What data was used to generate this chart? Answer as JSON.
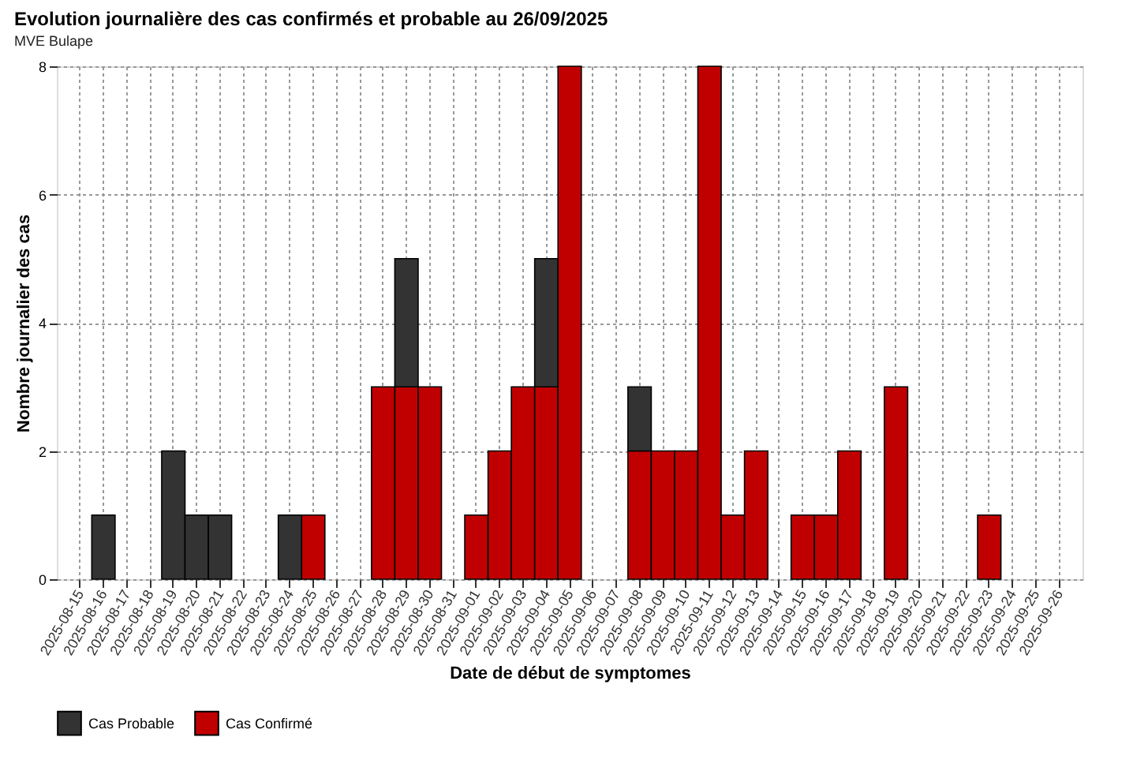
{
  "chart_data": {
    "type": "bar",
    "title": "Evolution journalière des cas confirmés et probable au 26/09/2025",
    "subtitle": "MVE Bulape",
    "xlabel": "Date de début de symptomes",
    "ylabel": "Nombre journalier des cas",
    "categories": [
      "2025-08-15",
      "2025-08-16",
      "2025-08-17",
      "2025-08-18",
      "2025-08-19",
      "2025-08-20",
      "2025-08-21",
      "2025-08-22",
      "2025-08-23",
      "2025-08-24",
      "2025-08-25",
      "2025-08-26",
      "2025-08-27",
      "2025-08-28",
      "2025-08-29",
      "2025-08-30",
      "2025-08-31",
      "2025-09-01",
      "2025-09-02",
      "2025-09-03",
      "2025-09-04",
      "2025-09-05",
      "2025-09-06",
      "2025-09-07",
      "2025-09-08",
      "2025-09-09",
      "2025-09-10",
      "2025-09-11",
      "2025-09-12",
      "2025-09-13",
      "2025-09-14",
      "2025-09-15",
      "2025-09-16",
      "2025-09-17",
      "2025-09-18",
      "2025-09-19",
      "2025-09-20",
      "2025-09-21",
      "2025-09-22",
      "2025-09-23",
      "2025-09-24",
      "2025-09-25",
      "2025-09-26"
    ],
    "stacked": true,
    "series": [
      {
        "name": "Cas Confirmé",
        "color": "#c00000",
        "values": [
          0,
          0,
          0,
          0,
          0,
          0,
          0,
          0,
          0,
          0,
          1,
          0,
          0,
          3,
          3,
          3,
          0,
          1,
          2,
          3,
          3,
          8,
          0,
          0,
          2,
          2,
          2,
          8,
          1,
          2,
          0,
          1,
          1,
          2,
          0,
          3,
          0,
          0,
          0,
          1,
          0,
          0,
          0
        ]
      },
      {
        "name": "Cas Probable",
        "color": "#333333",
        "values": [
          0,
          1,
          0,
          0,
          2,
          1,
          1,
          0,
          0,
          1,
          0,
          0,
          0,
          0,
          2,
          0,
          0,
          0,
          0,
          0,
          2,
          0,
          0,
          0,
          1,
          0,
          0,
          0,
          0,
          0,
          0,
          0,
          0,
          0,
          0,
          0,
          0,
          0,
          0,
          0,
          0,
          0,
          0
        ]
      }
    ],
    "ylim": [
      0,
      8
    ],
    "yticks": [
      0,
      2,
      4,
      6,
      8
    ],
    "grid": true,
    "legend": "bottom"
  }
}
